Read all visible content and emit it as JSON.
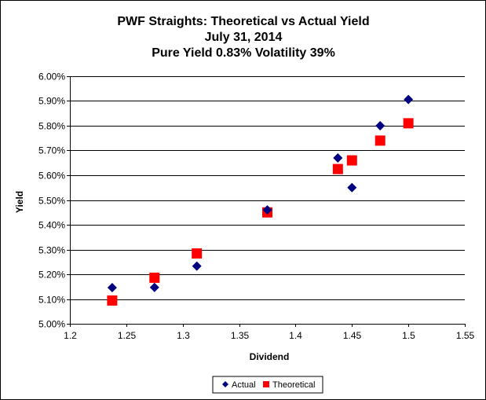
{
  "chart_data": {
    "type": "scatter",
    "title": [
      "PWF Straights: Theoretical vs Actual Yield",
      "July 31, 2014",
      "Pure Yield 0.83% Volatility 39%"
    ],
    "xlabel": "Dividend",
    "ylabel": "Yield",
    "xlim": [
      1.2,
      1.55
    ],
    "ylim": [
      5.0,
      6.0
    ],
    "x_ticks": [
      "1.2",
      "1.25",
      "1.3",
      "1.35",
      "1.4",
      "1.45",
      "1.5",
      "1.55"
    ],
    "y_ticks": [
      "5.00%",
      "5.10%",
      "5.20%",
      "5.30%",
      "5.40%",
      "5.50%",
      "5.60%",
      "5.70%",
      "5.80%",
      "5.90%",
      "6.00%"
    ],
    "grid": "horizontal",
    "legend_position": "bottom",
    "series": [
      {
        "name": "Actual",
        "marker": "diamond",
        "color": "#000080",
        "points": [
          [
            1.2375,
            5.146
          ],
          [
            1.275,
            5.147
          ],
          [
            1.3125,
            5.233
          ],
          [
            1.375,
            5.46
          ],
          [
            1.4375,
            5.67
          ],
          [
            1.45,
            5.55
          ],
          [
            1.475,
            5.8
          ],
          [
            1.5,
            5.906
          ]
        ]
      },
      {
        "name": "Theoretical",
        "marker": "square",
        "color": "#ff0000",
        "points": [
          [
            1.2375,
            5.094
          ],
          [
            1.275,
            5.186
          ],
          [
            1.3125,
            5.284
          ],
          [
            1.375,
            5.45
          ],
          [
            1.4375,
            5.625
          ],
          [
            1.45,
            5.66
          ],
          [
            1.475,
            5.74
          ],
          [
            1.5,
            5.81
          ]
        ]
      }
    ]
  }
}
